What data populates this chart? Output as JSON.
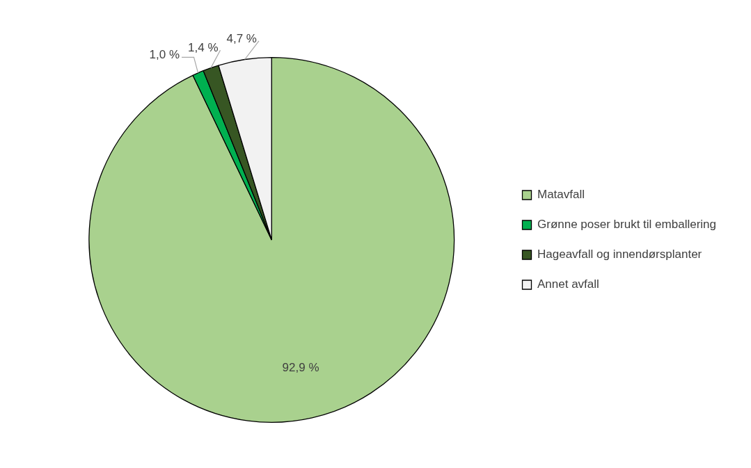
{
  "chart_data": {
    "type": "pie",
    "categories": [
      "Matavfall",
      "Grønne poser brukt til emballering",
      "Hageavfall og innendørsplanter",
      "Annet avfall"
    ],
    "values": [
      92.9,
      1.0,
      1.4,
      4.7
    ],
    "colors": [
      "#a9d18e",
      "#00b050",
      "#375623",
      "#f2f2f2"
    ],
    "value_labels": [
      "92,9 %",
      "1,0 %",
      "1,4 %",
      "4,7 %"
    ],
    "legend": "right"
  }
}
